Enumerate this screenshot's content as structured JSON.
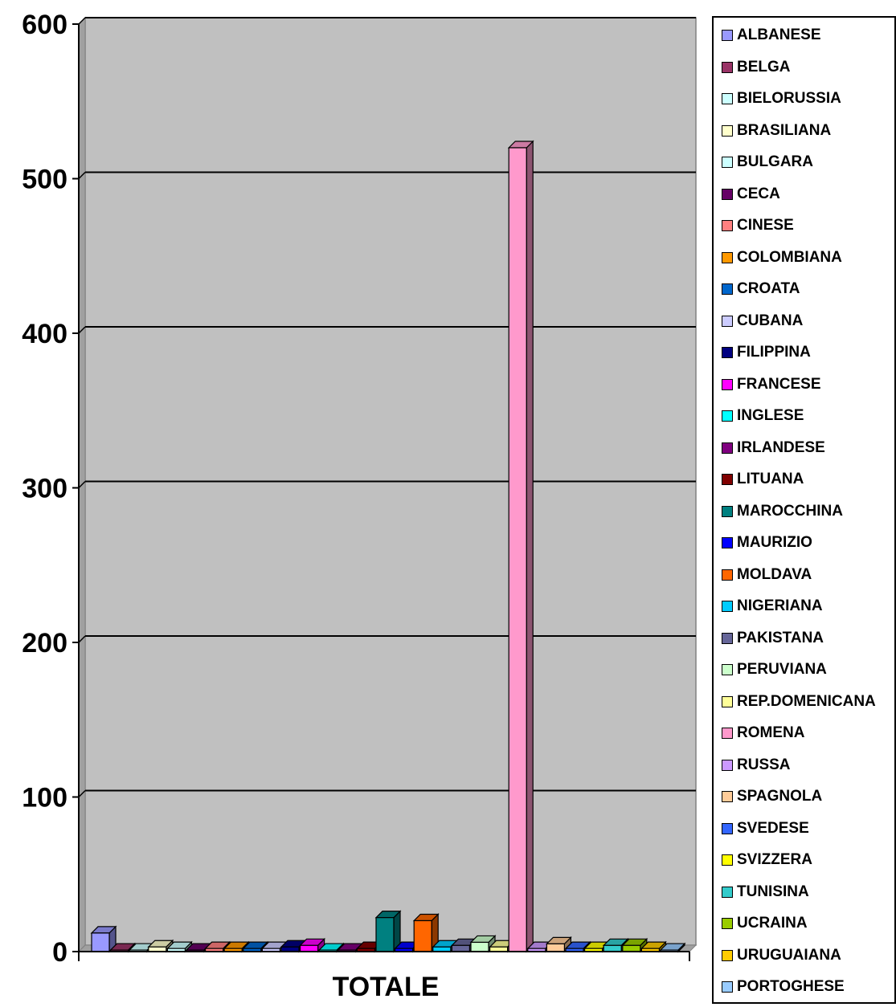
{
  "chart_data": {
    "type": "bar",
    "categories": [
      "TOTALE"
    ],
    "xlabel": "",
    "ylabel": "",
    "ylim": [
      0,
      600
    ],
    "yticks": [
      "0",
      "100",
      "200",
      "300",
      "400",
      "500",
      "600"
    ],
    "grid": true,
    "legend_position": "right",
    "series": [
      {
        "name": "ALBANESE",
        "values": [
          12
        ],
        "color": "#9999ff"
      },
      {
        "name": "BELGA",
        "values": [
          1
        ],
        "color": "#993366"
      },
      {
        "name": "BIELORUSSIA",
        "values": [
          1
        ],
        "color": "#ccffff"
      },
      {
        "name": "BRASILIANA",
        "values": [
          3
        ],
        "color": "#ffffcc"
      },
      {
        "name": "BULGARA",
        "values": [
          2
        ],
        "color": "#ccffff"
      },
      {
        "name": "CECA",
        "values": [
          1
        ],
        "color": "#660066"
      },
      {
        "name": "CINESE",
        "values": [
          2
        ],
        "color": "#ff8080"
      },
      {
        "name": "COLOMBIANA",
        "values": [
          2
        ],
        "color": "#ff9900"
      },
      {
        "name": "CROATA",
        "values": [
          2
        ],
        "color": "#0066cc"
      },
      {
        "name": "CUBANA",
        "values": [
          2
        ],
        "color": "#ccccff"
      },
      {
        "name": "FILIPPINA",
        "values": [
          3
        ],
        "color": "#000080"
      },
      {
        "name": "FRANCESE",
        "values": [
          4
        ],
        "color": "#ff00ff"
      },
      {
        "name": "INGLESE",
        "values": [
          1
        ],
        "color": "#00ffff"
      },
      {
        "name": "IRLANDESE",
        "values": [
          1
        ],
        "color": "#800080"
      },
      {
        "name": "LITUANA",
        "values": [
          2
        ],
        "color": "#800000"
      },
      {
        "name": "MAROCCHINA",
        "values": [
          22
        ],
        "color": "#008080"
      },
      {
        "name": "MAURIZIO",
        "values": [
          2
        ],
        "color": "#0000ff"
      },
      {
        "name": "MOLDAVA",
        "values": [
          20
        ],
        "color": "#ff6600"
      },
      {
        "name": "NIGERIANA",
        "values": [
          3
        ],
        "color": "#00ccff"
      },
      {
        "name": "PAKISTANA",
        "values": [
          4
        ],
        "color": "#666699"
      },
      {
        "name": "PERUVIANA",
        "values": [
          6
        ],
        "color": "#ccffcc"
      },
      {
        "name": "REP.DOMENICANA",
        "values": [
          3
        ],
        "color": "#ffff99"
      },
      {
        "name": "ROMENA",
        "values": [
          520
        ],
        "color": "#ff99cc"
      },
      {
        "name": "RUSSA",
        "values": [
          2
        ],
        "color": "#cc99ff"
      },
      {
        "name": "SPAGNOLA",
        "values": [
          5
        ],
        "color": "#ffcc99"
      },
      {
        "name": "SVEDESE",
        "values": [
          2
        ],
        "color": "#3366ff"
      },
      {
        "name": "SVIZZERA",
        "values": [
          2
        ],
        "color": "#ffff00"
      },
      {
        "name": "TUNISINA",
        "values": [
          4
        ],
        "color": "#33cccc"
      },
      {
        "name": "UCRAINA",
        "values": [
          4
        ],
        "color": "#99cc00"
      },
      {
        "name": "URUGUAIANA",
        "values": [
          2
        ],
        "color": "#ffcc00"
      },
      {
        "name": "PORTOGHESE",
        "values": [
          1
        ],
        "color": "#99ccff"
      }
    ],
    "plot_area_color": "#c0c0c0"
  }
}
